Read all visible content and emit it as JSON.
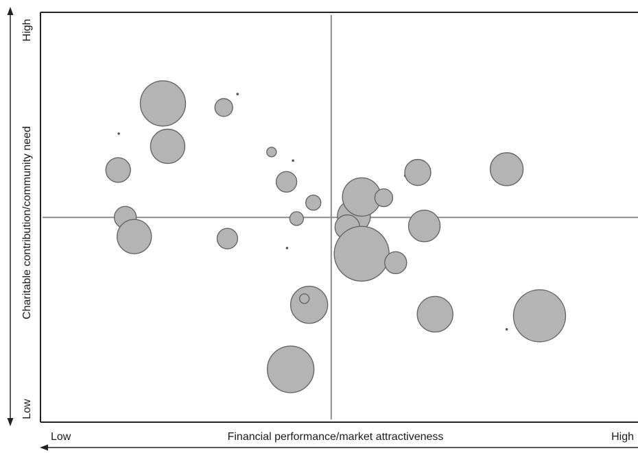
{
  "chart_data": {
    "type": "bubble",
    "title": "",
    "xlabel": "Financial performance/market attractiveness",
    "ylabel": "Charitable contribution/community need",
    "x_low_label": "Low",
    "x_high_label": "High",
    "y_low_label": "Low",
    "y_high_label": "High",
    "xlim": [
      0,
      100
    ],
    "ylim": [
      0,
      100
    ],
    "quadrant_dividers": {
      "x": 48.6,
      "y": 49.8
    },
    "grid": false,
    "legend": "none",
    "points": [
      {
        "x": 20.4,
        "y": 77.7,
        "size": 33
      },
      {
        "x": 21.2,
        "y": 67.2,
        "size": 25
      },
      {
        "x": 30.6,
        "y": 76.7,
        "size": 13
      },
      {
        "x": 32.9,
        "y": 80.0,
        "size": 2
      },
      {
        "x": 13.0,
        "y": 70.3,
        "size": 1
      },
      {
        "x": 12.9,
        "y": 61.4,
        "size": 18
      },
      {
        "x": 14.1,
        "y": 49.8,
        "size": 16
      },
      {
        "x": 15.6,
        "y": 45.1,
        "size": 25
      },
      {
        "x": 31.2,
        "y": 44.6,
        "size": 15
      },
      {
        "x": 38.6,
        "y": 65.8,
        "size": 7
      },
      {
        "x": 42.2,
        "y": 63.7,
        "size": 1
      },
      {
        "x": 41.1,
        "y": 58.5,
        "size": 15
      },
      {
        "x": 45.6,
        "y": 53.4,
        "size": 11
      },
      {
        "x": 42.8,
        "y": 49.5,
        "size": 10
      },
      {
        "x": 41.2,
        "y": 42.3,
        "size": 1
      },
      {
        "x": 52.4,
        "y": 50.1,
        "size": 24
      },
      {
        "x": 51.3,
        "y": 47.4,
        "size": 18
      },
      {
        "x": 53.7,
        "y": 54.8,
        "size": 28
      },
      {
        "x": 57.4,
        "y": 54.6,
        "size": 13
      },
      {
        "x": 53.7,
        "y": 40.9,
        "size": 40
      },
      {
        "x": 59.4,
        "y": 38.7,
        "size": 16
      },
      {
        "x": 44.9,
        "y": 28.4,
        "size": 27
      },
      {
        "x": 44.1,
        "y": 29.9,
        "size": 7
      },
      {
        "x": 61.0,
        "y": 60.0,
        "size": 1
      },
      {
        "x": 63.1,
        "y": 60.8,
        "size": 19
      },
      {
        "x": 64.2,
        "y": 47.7,
        "size": 23
      },
      {
        "x": 66.0,
        "y": 26.1,
        "size": 26
      },
      {
        "x": 78.0,
        "y": 61.6,
        "size": 24
      },
      {
        "x": 83.5,
        "y": 25.7,
        "size": 38
      },
      {
        "x": 78.0,
        "y": 22.4,
        "size": 1
      },
      {
        "x": 41.8,
        "y": 12.6,
        "size": 34
      }
    ]
  }
}
